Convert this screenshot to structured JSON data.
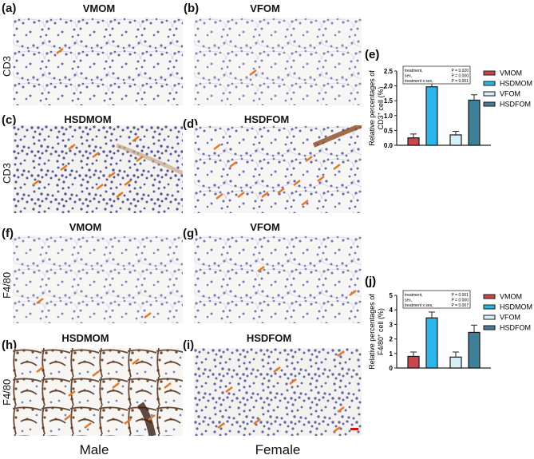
{
  "figure": {
    "panels": [
      {
        "id": "a",
        "label": "(a)",
        "title": "VMOM",
        "stain": "CD3",
        "tone": "light-blue"
      },
      {
        "id": "b",
        "label": "(b)",
        "title": "VFOM",
        "stain": "CD3",
        "tone": "sparse-blue"
      },
      {
        "id": "c",
        "label": "(c)",
        "title": "HSDMOM",
        "stain": "CD3",
        "tone": "dense-brown-arrows"
      },
      {
        "id": "d",
        "label": "(d)",
        "title": "HSDFOM",
        "stain": "CD3",
        "tone": "blue-brown-arrows"
      },
      {
        "id": "f",
        "label": "(f)",
        "title": "VMOM",
        "stain": "F4/80",
        "tone": "sparse-blue"
      },
      {
        "id": "g",
        "label": "(g)",
        "title": "VFOM",
        "stain": "F4/80",
        "tone": "sparse-blue"
      },
      {
        "id": "h",
        "label": "(h)",
        "title": "HSDMOM",
        "stain": "F4/80",
        "tone": "dark-brown"
      },
      {
        "id": "i",
        "label": "(i)",
        "title": "HSDFOM",
        "stain": "F4/80",
        "tone": "blue-brown-arrows"
      }
    ],
    "row_labels": [
      "CD3",
      "CD3",
      "F4/80",
      "F4/80"
    ],
    "column_labels": {
      "male": "Male",
      "female": "Female"
    }
  },
  "chart_data": [
    {
      "panel": "(e)",
      "type": "bar",
      "title": "",
      "ylabel": "Relative percentages of CD3+ cell (%)",
      "ylabel_line1": "Relative percentages of",
      "ylabel_line2": "CD3",
      "ylabel_sup": "+",
      "ylabel_tail": " cell (%)",
      "xlabel": "",
      "ylim": [
        0,
        2.5
      ],
      "yticks": [
        "0.0",
        "0.5",
        "1.0",
        "1.5",
        "2.0",
        "2.5"
      ],
      "categories": [
        "VMOM",
        "HSDMOM",
        "VFOM",
        "HSDFOM"
      ],
      "values": [
        0.25,
        1.97,
        0.35,
        1.52
      ],
      "errors": [
        0.13,
        0.22,
        0.12,
        0.18
      ],
      "colors": [
        "#c9474b",
        "#2bb6ea",
        "#d6eef6",
        "#3f7f98"
      ],
      "legend": [
        "VMOM",
        "HSDMOM",
        "VFOM",
        "HSDFOM"
      ],
      "legend_position": "right",
      "stats": [
        {
          "term": "treatment,",
          "p": "P = 0.020"
        },
        {
          "term": "sex,",
          "p": "P = 0.000"
        },
        {
          "term": "treatment x sex,",
          "p": "P = 0.001"
        }
      ]
    },
    {
      "panel": "(j)",
      "type": "bar",
      "title": "",
      "ylabel": "Relative percentages of F4/80+ cell (%)",
      "ylabel_line1": "Relative percentages of",
      "ylabel_line2": "F4/80",
      "ylabel_sup": "+",
      "ylabel_tail": " cell (%)",
      "xlabel": "",
      "ylim": [
        0,
        5
      ],
      "yticks": [
        "0",
        "1",
        "2",
        "3",
        "4",
        "5"
      ],
      "categories": [
        "VMOM",
        "HSDMOM",
        "VFOM",
        "HSDFOM"
      ],
      "values": [
        0.8,
        3.45,
        0.75,
        2.45
      ],
      "errors": [
        0.3,
        0.4,
        0.35,
        0.5
      ],
      "colors": [
        "#c9474b",
        "#2bb6ea",
        "#d6eef6",
        "#3f7f98"
      ],
      "legend": [
        "VMOM",
        "HSDMOM",
        "VFOM",
        "HSDFOM"
      ],
      "legend_position": "right",
      "stats": [
        {
          "term": "treatment,",
          "p": "P = 0.001"
        },
        {
          "term": "sex,",
          "p": "P = 0.000"
        },
        {
          "term": "treatment x sex,",
          "p": "P = 0.007"
        }
      ]
    }
  ]
}
